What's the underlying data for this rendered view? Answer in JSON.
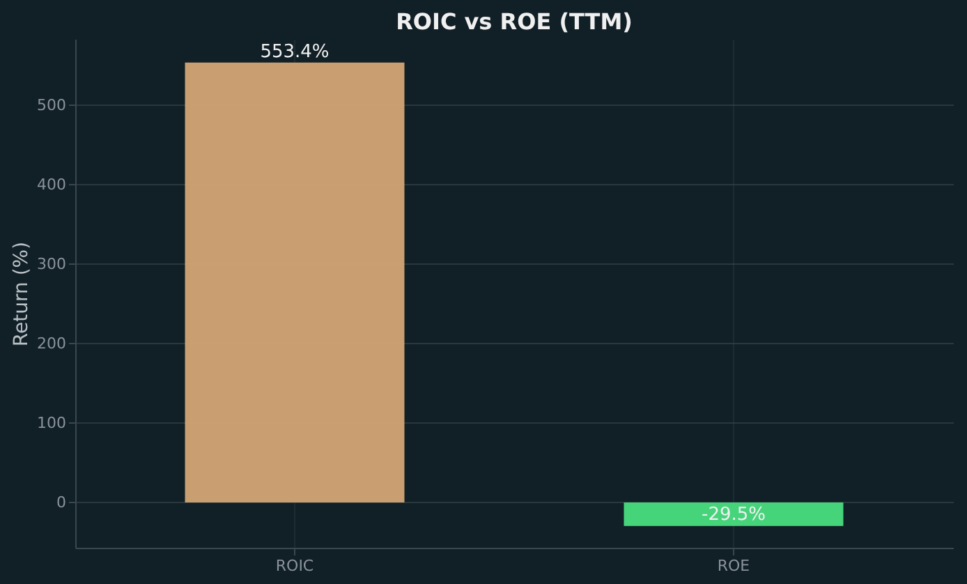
{
  "chart_data": {
    "type": "bar",
    "title": "ROIC vs ROE (TTM)",
    "ylabel": "Return (%)",
    "categories": [
      "ROIC",
      "ROE"
    ],
    "values": [
      553.4,
      -29.5
    ],
    "colors": [
      "#d4a574",
      "#4ade80"
    ],
    "value_labels": [
      "553.4%",
      "-29.5%"
    ],
    "ylim": [
      -57,
      583
    ],
    "yticks": [
      0,
      100,
      200,
      300,
      400,
      500
    ],
    "grid": true
  }
}
